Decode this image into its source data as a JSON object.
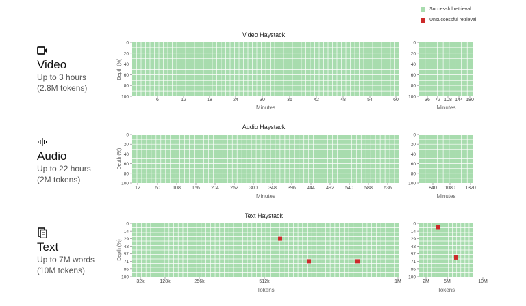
{
  "legend": {
    "success_label": "Successful retrieval",
    "fail_label": "Unsuccessful retrieval",
    "success_color": "#a8dcae",
    "fail_color": "#cc2a2a"
  },
  "modalities": [
    {
      "icon": "video-camera-icon",
      "title": "Video",
      "line1": "Up to 3 hours",
      "line2": "(2.8M tokens)"
    },
    {
      "icon": "audio-waveform-icon",
      "title": "Audio",
      "line1": "Up to 22 hours",
      "line2": "(2M tokens)"
    },
    {
      "icon": "document-icon",
      "title": "Text",
      "line1": "Up to 7M words",
      "line2": "(10M tokens)"
    }
  ],
  "chart_data": [
    {
      "type": "heatmap",
      "title": "Video Haystack",
      "xlabel": "Minutes",
      "ylabel": "Depth (%)",
      "y_ticks": [
        "0",
        "20",
        "40",
        "60",
        "80",
        "100"
      ],
      "main": {
        "x_ticks": [
          "6",
          "12",
          "18",
          "24",
          "30",
          "36",
          "42",
          "48",
          "54",
          "60"
        ],
        "x_range": [
          0,
          60
        ],
        "cols": 60,
        "rows": 10
      },
      "extended": {
        "x_ticks": [
          "36",
          "72",
          "108",
          "144",
          "180"
        ],
        "x_range": [
          0,
          180
        ],
        "cols": 9,
        "rows": 10
      },
      "failures": []
    },
    {
      "type": "heatmap",
      "title": "Audio Haystack",
      "xlabel": "Minutes",
      "ylabel": "Depth (%)",
      "y_ticks": [
        "0",
        "20",
        "40",
        "60",
        "80",
        "100"
      ],
      "main": {
        "x_ticks": [
          "12",
          "60",
          "108",
          "156",
          "204",
          "252",
          "300",
          "348",
          "396",
          "444",
          "492",
          "540",
          "588",
          "636"
        ],
        "x_range": [
          0,
          660
        ],
        "cols": 56,
        "rows": 10
      },
      "extended": {
        "x_ticks": [
          "840",
          "1080",
          "1320"
        ],
        "x_range": [
          660,
          1320
        ],
        "cols": 9,
        "rows": 10
      },
      "failures": []
    },
    {
      "type": "heatmap",
      "title": "Text Haystack",
      "xlabel": "Tokens",
      "ylabel": "Depth (%)",
      "y_ticks": [
        "0",
        "14",
        "29",
        "43",
        "57",
        "71",
        "86",
        "100"
      ],
      "main": {
        "x_ticks": [
          "32k",
          "128k",
          "256k",
          "512k",
          "1M"
        ],
        "cols": 58,
        "rows": 12
      },
      "extended": {
        "x_ticks": [
          "2M",
          "5M",
          "10M"
        ],
        "cols": 13,
        "rows": 12
      },
      "failures": [
        {
          "panel": "main",
          "x": "512k",
          "depth": 29
        },
        {
          "panel": "main",
          "x": "640k",
          "depth": 71
        },
        {
          "panel": "main",
          "x": "820k",
          "depth": 71
        },
        {
          "panel": "extended",
          "x": "3M",
          "depth": 7
        },
        {
          "panel": "extended",
          "x": "7M",
          "depth": 64
        }
      ]
    }
  ]
}
